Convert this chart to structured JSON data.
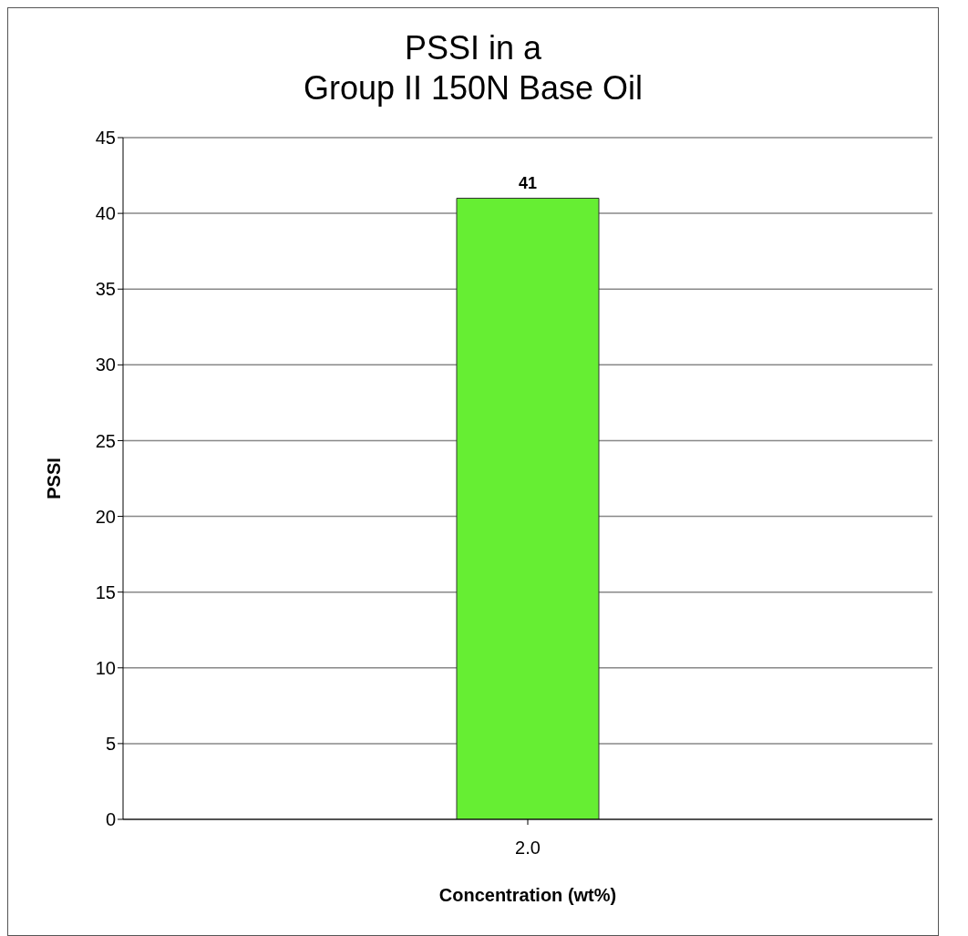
{
  "chart_data": {
    "type": "bar",
    "title": "PSSI in a\nGroup II 150N Base Oil",
    "xlabel": "Concentration (wt%)",
    "ylabel": "PSSI",
    "categories": [
      "2.0"
    ],
    "values": [
      41
    ],
    "color": "#66ee33",
    "ylim": [
      0,
      45
    ],
    "yticks": [
      0,
      5,
      10,
      15,
      20,
      25,
      30,
      35,
      40,
      45
    ],
    "grid": "y",
    "data_labels": true
  }
}
